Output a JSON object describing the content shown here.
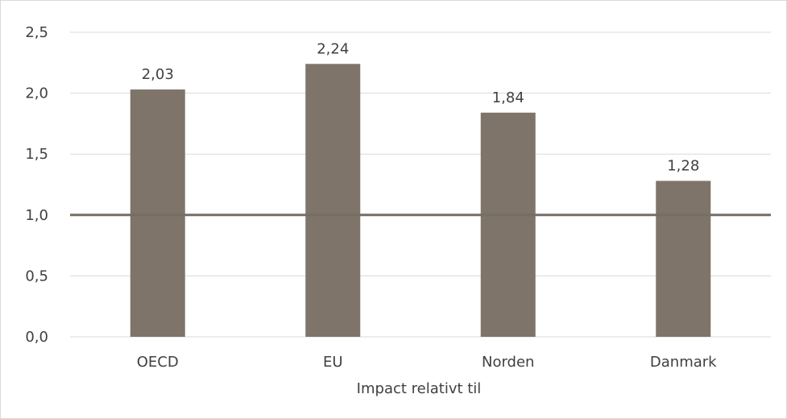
{
  "chart_data": {
    "type": "bar",
    "categories": [
      "OECD",
      "EU",
      "Norden",
      "Danmark"
    ],
    "values": [
      2.03,
      2.24,
      1.84,
      1.28
    ],
    "data_labels": [
      "2,03",
      "2,24",
      "1,84",
      "1,28"
    ],
    "xlabel": "Impact relativt til",
    "ylabel": "",
    "ylim": [
      0,
      2.5
    ],
    "yticks": [
      0,
      0.5,
      1.0,
      1.5,
      2.0,
      2.5
    ],
    "ytick_labels": [
      "0,0",
      "0,5",
      "1,0",
      "1,5",
      "2,0",
      "2,5"
    ],
    "reference_line": 1.0,
    "grid": true,
    "legend": "none",
    "bar_color": "#7f7469",
    "reference_line_color": "#766d64",
    "grid_color": "#d9d9d9"
  }
}
